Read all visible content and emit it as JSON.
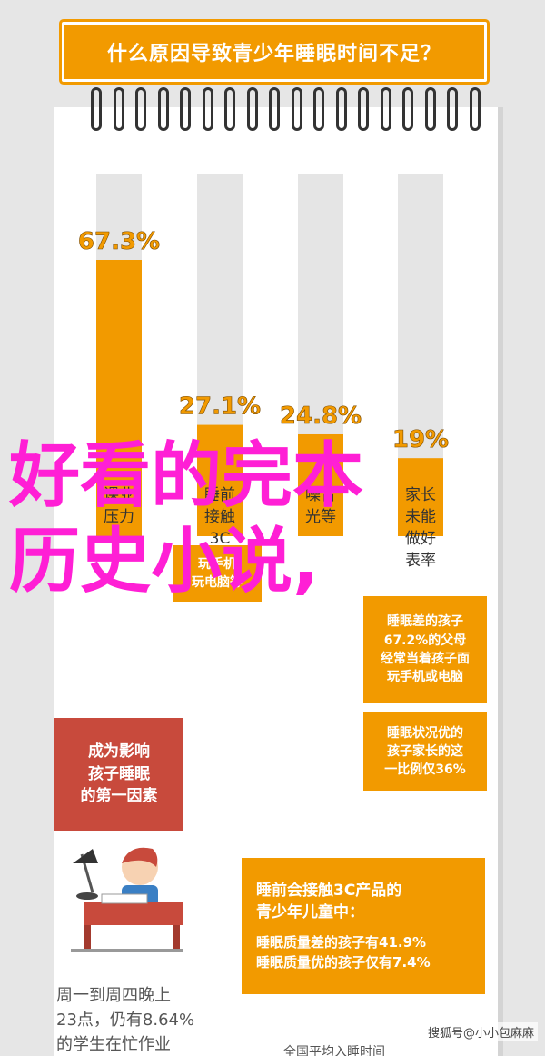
{
  "title": "什么原因导致青少年睡眠时间不足？",
  "chart_data": {
    "type": "bar",
    "categories": [
      "课业压力",
      "睡前接触3C产品",
      "噪音、光等",
      "家长"
    ],
    "values": [
      67.3,
      27.1,
      24.8,
      19
    ],
    "value_labels": [
      "67.3%",
      "27.1%",
      "24.8%",
      "19%"
    ],
    "ylim": [
      0,
      100
    ],
    "colors": {
      "fill": "#f29a00",
      "track": "#e5e5e5"
    }
  },
  "category_lines": [
    [
      "课业",
      "压力"
    ],
    [
      "睡前",
      "接触",
      "3C",
      "产品"
    ],
    [
      "噪音",
      "光等"
    ],
    [
      "家长",
      "未能",
      "做好",
      "表率"
    ]
  ],
  "small_callout": [
    "玩手机",
    "玩电脑等"
  ],
  "right_callout_1": [
    "睡眠差的孩子",
    "67.2%的父母",
    "经常当着孩子面",
    "玩手机或电脑"
  ],
  "right_callout_2": [
    "睡眠状况优的",
    "孩子家长的这",
    "一比例仅36%"
  ],
  "left_callout": [
    "成为影响",
    "孩子睡眠",
    "的第一因素"
  ],
  "bottom_callout": {
    "heading": [
      "睡前会接触3C产品的",
      "青少年儿童中："
    ],
    "line1": "睡眠质量差的孩子有41.9%",
    "line2": "睡眠质量优的孩子仅有7.4%"
  },
  "bottom_text": [
    "周一到周四晚上",
    "23点，仍有8.64%",
    "的学生在忙作业"
  ],
  "bottom_cut_text": "全国平均入睡时间",
  "overlay": [
    "好看的完本",
    "历史小说,"
  ],
  "watermark": "搜狐号@小小包麻麻"
}
